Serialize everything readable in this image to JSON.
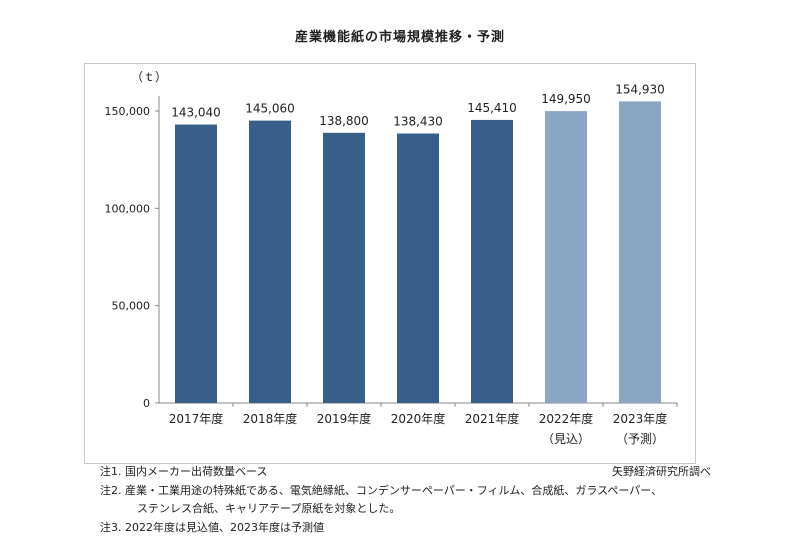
{
  "title": "産業機能紙の市場規模推移・予測",
  "colors": {
    "actual": "#375F8A",
    "forecast": "#8AA6C3",
    "axis": "#888888"
  },
  "chart_data": {
    "type": "bar",
    "title": "産業機能紙の市場規模推移・予測",
    "unit_label": "（ｔ）",
    "categories": [
      "2017年度",
      "2018年度",
      "2019年度",
      "2020年度",
      "2021年度",
      "2022年度",
      "2023年度"
    ],
    "category_sublabels": [
      "",
      "",
      "",
      "",
      "",
      "（見込）",
      "（予測）"
    ],
    "values": [
      143040,
      145060,
      138800,
      138430,
      145410,
      149950,
      154930
    ],
    "value_labels": [
      "143,040",
      "145,060",
      "138,800",
      "138,430",
      "145,410",
      "149,950",
      "154,930"
    ],
    "bar_status": [
      "actual",
      "actual",
      "actual",
      "actual",
      "actual",
      "forecast",
      "forecast"
    ],
    "yticks": [
      0,
      50000,
      100000,
      150000
    ],
    "ytick_labels": [
      "0",
      "50,000",
      "100,000",
      "150,000"
    ],
    "ylim": [
      0,
      150000
    ],
    "grid": false,
    "legend": "none"
  },
  "notes": [
    "注1.  国内メーカー出荷数量ベース",
    "注2.  産業・工業用途の特殊紙である、電気絶縁紙、コンデンサーペーパー・フィルム、合成紙、ガラスペーパー、",
    "ステンレス合紙、キャリアテープ原紙を対象とした。",
    "注3.  2022年度は見込値、2023年度は予測値"
  ],
  "source": "矢野経済研究所調べ"
}
